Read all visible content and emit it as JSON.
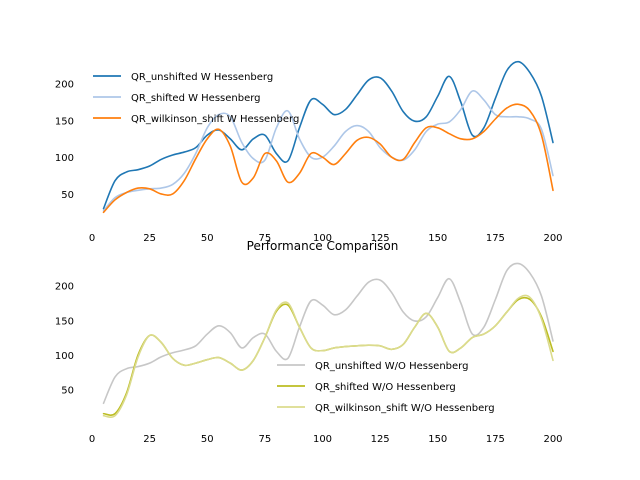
{
  "chart_data": [
    {
      "type": "line",
      "title": "",
      "xlabel": "",
      "ylabel": "",
      "xlim": [
        0,
        200
      ],
      "ylim": [
        20,
        235
      ],
      "xticks": [
        0,
        25,
        50,
        75,
        100,
        125,
        150,
        175,
        200
      ],
      "yticks": [
        50,
        100,
        150,
        200
      ],
      "grid": false,
      "legend_position": "upper-left",
      "series": [
        {
          "name": "QR_unshifted W Hessenberg",
          "color": "#1f77b4",
          "x": [
            5,
            10,
            15,
            20,
            25,
            30,
            35,
            40,
            45,
            50,
            55,
            60,
            65,
            70,
            75,
            80,
            85,
            90,
            95,
            100,
            105,
            110,
            115,
            120,
            125,
            130,
            135,
            140,
            145,
            150,
            155,
            160,
            165,
            170,
            175,
            180,
            185,
            190,
            195,
            200
          ],
          "y": [
            30,
            68,
            80,
            83,
            88,
            97,
            103,
            107,
            113,
            130,
            137,
            125,
            110,
            125,
            130,
            105,
            95,
            140,
            178,
            172,
            158,
            165,
            185,
            205,
            208,
            190,
            162,
            149,
            155,
            183,
            210,
            175,
            130,
            140,
            180,
            218,
            230,
            215,
            183,
            120
          ]
        },
        {
          "name": "QR_shifted W Hessenberg",
          "color": "#aec7e8",
          "x": [
            5,
            10,
            15,
            20,
            25,
            30,
            35,
            40,
            45,
            50,
            55,
            60,
            65,
            70,
            75,
            80,
            85,
            90,
            95,
            100,
            105,
            110,
            115,
            120,
            125,
            130,
            135,
            140,
            145,
            150,
            155,
            160,
            165,
            170,
            175,
            180,
            185,
            190,
            195,
            200
          ],
          "y": [
            27,
            45,
            52,
            55,
            57,
            58,
            63,
            78,
            105,
            140,
            158,
            155,
            120,
            98,
            96,
            140,
            163,
            125,
            100,
            100,
            115,
            135,
            143,
            135,
            113,
            100,
            96,
            110,
            135,
            145,
            148,
            165,
            190,
            178,
            158,
            155,
            155,
            152,
            138,
            75
          ]
        },
        {
          "name": "QR_wilkinson_shift W Hessenberg",
          "color": "#ff7f0e",
          "x": [
            5,
            10,
            15,
            20,
            25,
            30,
            35,
            40,
            45,
            50,
            55,
            60,
            65,
            70,
            75,
            80,
            85,
            90,
            95,
            100,
            105,
            110,
            115,
            120,
            125,
            130,
            135,
            140,
            145,
            150,
            155,
            160,
            165,
            170,
            175,
            180,
            185,
            190,
            195,
            200
          ],
          "y": [
            25,
            42,
            52,
            58,
            57,
            50,
            50,
            68,
            98,
            125,
            138,
            115,
            66,
            72,
            105,
            95,
            66,
            78,
            105,
            100,
            90,
            105,
            123,
            127,
            118,
            100,
            97,
            120,
            140,
            140,
            132,
            125,
            125,
            135,
            152,
            167,
            172,
            163,
            130,
            55
          ]
        }
      ]
    },
    {
      "type": "line",
      "title": "Performance Comparison",
      "xlabel": "",
      "ylabel": "",
      "xlim": [
        0,
        200
      ],
      "ylim": [
        0,
        240
      ],
      "xticks": [
        0,
        25,
        50,
        75,
        100,
        125,
        150,
        175,
        200
      ],
      "yticks": [
        50,
        100,
        150,
        200
      ],
      "grid": false,
      "legend_position": "lower-right",
      "series": [
        {
          "name": "QR_unshifted W/O Hessenberg",
          "color": "#c7c7c7",
          "x": [
            5,
            10,
            15,
            20,
            25,
            30,
            35,
            40,
            45,
            50,
            55,
            60,
            65,
            70,
            75,
            80,
            85,
            90,
            95,
            100,
            105,
            110,
            115,
            120,
            125,
            130,
            135,
            140,
            145,
            150,
            155,
            160,
            165,
            170,
            175,
            180,
            185,
            190,
            195,
            200
          ],
          "y": [
            30,
            68,
            80,
            83,
            88,
            97,
            103,
            107,
            113,
            130,
            142,
            132,
            110,
            125,
            130,
            105,
            95,
            140,
            178,
            172,
            158,
            165,
            185,
            205,
            208,
            190,
            162,
            149,
            155,
            183,
            210,
            175,
            130,
            140,
            180,
            222,
            232,
            218,
            185,
            120
          ]
        },
        {
          "name": "QR_shifted W/O Hessenberg",
          "color": "#bcbd22",
          "x": [
            5,
            10,
            15,
            20,
            25,
            30,
            35,
            40,
            45,
            50,
            55,
            60,
            65,
            70,
            75,
            80,
            85,
            90,
            95,
            100,
            105,
            110,
            115,
            120,
            125,
            130,
            135,
            140,
            145,
            150,
            155,
            160,
            165,
            170,
            175,
            180,
            185,
            190,
            195,
            200
          ],
          "y": [
            15,
            15,
            45,
            100,
            128,
            118,
            95,
            85,
            88,
            93,
            96,
            88,
            78,
            92,
            125,
            163,
            172,
            140,
            110,
            106,
            110,
            112,
            113,
            114,
            113,
            108,
            115,
            140,
            160,
            140,
            105,
            110,
            125,
            130,
            142,
            162,
            180,
            180,
            155,
            105
          ]
        },
        {
          "name": "QR_wilkinson_shift W/O Hessenberg",
          "color": "#dbdb8d",
          "x": [
            5,
            10,
            15,
            20,
            25,
            30,
            35,
            40,
            45,
            50,
            55,
            60,
            65,
            70,
            75,
            80,
            85,
            90,
            95,
            100,
            105,
            110,
            115,
            120,
            125,
            130,
            135,
            140,
            145,
            150,
            155,
            160,
            165,
            170,
            175,
            180,
            185,
            190,
            195,
            200
          ],
          "y": [
            12,
            12,
            42,
            97,
            128,
            118,
            95,
            85,
            88,
            93,
            96,
            88,
            78,
            92,
            125,
            165,
            175,
            140,
            110,
            106,
            110,
            112,
            113,
            114,
            113,
            108,
            115,
            140,
            160,
            140,
            105,
            110,
            125,
            130,
            142,
            162,
            182,
            183,
            152,
            92
          ]
        }
      ]
    }
  ]
}
